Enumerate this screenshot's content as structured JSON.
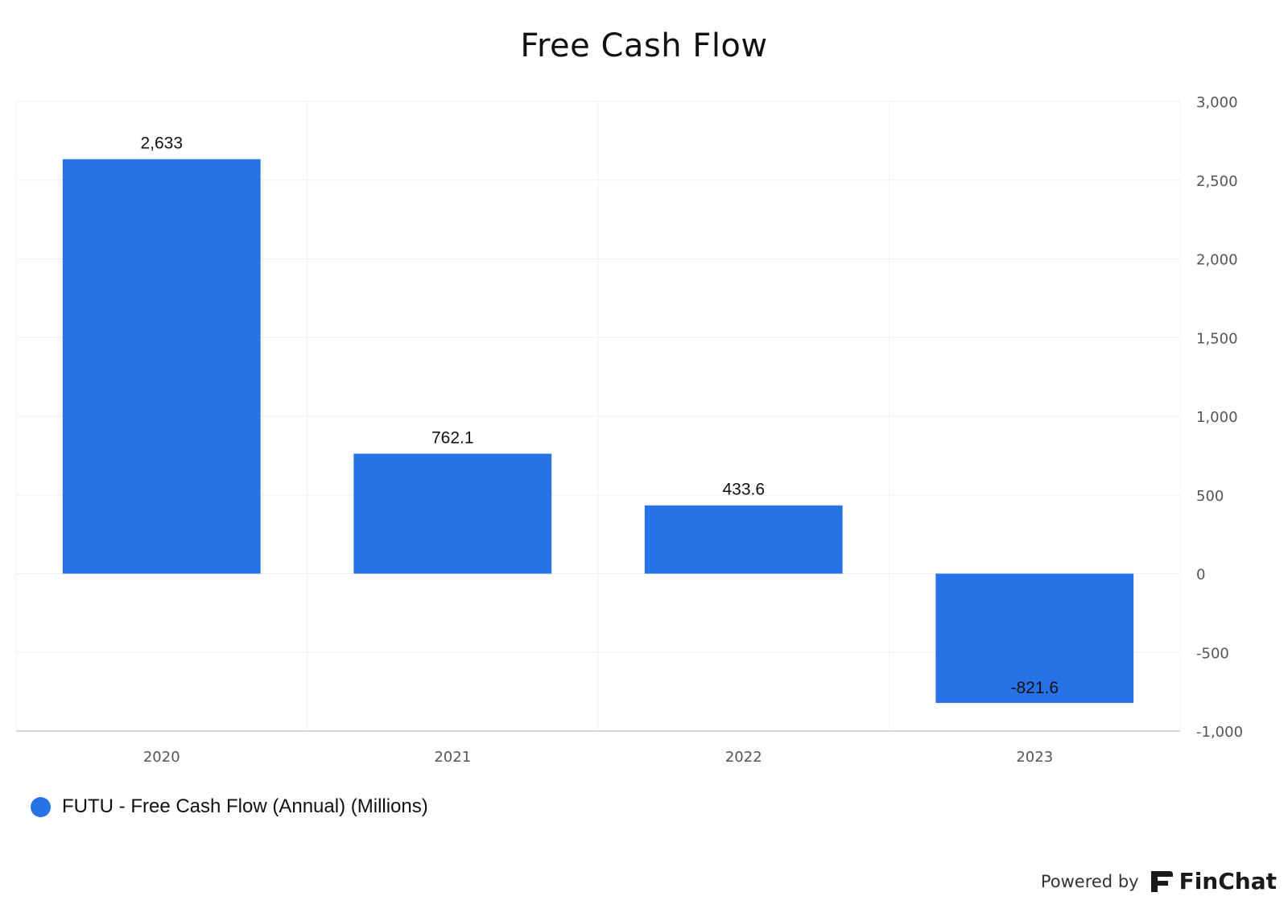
{
  "title": "Free Cash Flow",
  "chart_data": {
    "type": "bar",
    "categories": [
      "2020",
      "2021",
      "2022",
      "2023"
    ],
    "series": [
      {
        "name": "FUTU - Free Cash Flow (Annual) (Millions)",
        "values": [
          2633,
          762.1,
          433.6,
          -821.6
        ],
        "data_labels": [
          "2,633",
          "762.1",
          "433.6",
          "-821.6"
        ],
        "color": "#2872e8"
      }
    ],
    "ylim": [
      -1000,
      3000
    ],
    "y_ticks": [
      3000,
      2500,
      2000,
      1500,
      1000,
      500,
      0,
      -500,
      -1000
    ],
    "y_tick_labels": [
      "3,000",
      "2,500",
      "2,000",
      "1,500",
      "1,000",
      "500",
      "0",
      "-500",
      "-1,000"
    ],
    "y_axis_position": "right",
    "grid": true,
    "legend_position": "bottom-left"
  },
  "legend": {
    "label": "FUTU - Free Cash Flow (Annual) (Millions)"
  },
  "footer": {
    "powered_by": "Powered by",
    "brand": "FinChat",
    "logo_icon": "finchat-logo-icon"
  }
}
